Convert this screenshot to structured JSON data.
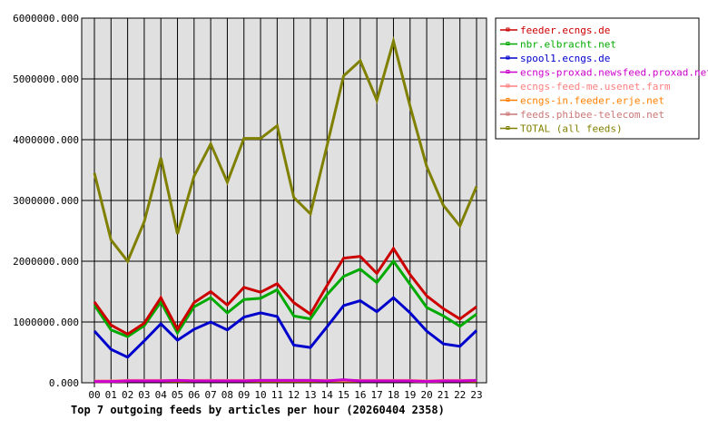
{
  "chart_data": {
    "type": "line",
    "title": "Top 7 outgoing feeds by articles per hour (20260404 2358)",
    "xlabel": "",
    "ylabel": "",
    "ylim": [
      0,
      6000000
    ],
    "yticks": [
      "0.000",
      "1000000.000",
      "2000000.000",
      "3000000.000",
      "4000000.000",
      "5000000.000",
      "6000000.000"
    ],
    "categories": [
      "00",
      "01",
      "02",
      "03",
      "04",
      "05",
      "06",
      "07",
      "08",
      "09",
      "10",
      "11",
      "12",
      "13",
      "14",
      "15",
      "16",
      "17",
      "18",
      "19",
      "20",
      "21",
      "22",
      "23"
    ],
    "grid": true,
    "legend": "right",
    "series": [
      {
        "name": "feeder.ecngs.de",
        "color": "#cc0000",
        "values": [
          1330000,
          950000,
          800000,
          980000,
          1400000,
          880000,
          1320000,
          1500000,
          1280000,
          1570000,
          1490000,
          1630000,
          1320000,
          1130000,
          1600000,
          2050000,
          2080000,
          1800000,
          2210000,
          1780000,
          1430000,
          1220000,
          1050000,
          1250000
        ]
      },
      {
        "name": "nbr.elbracht.net",
        "color": "#00aa00",
        "values": [
          1280000,
          870000,
          760000,
          940000,
          1330000,
          820000,
          1250000,
          1400000,
          1150000,
          1370000,
          1390000,
          1530000,
          1100000,
          1050000,
          1450000,
          1750000,
          1870000,
          1650000,
          2000000,
          1620000,
          1240000,
          1100000,
          930000,
          1130000
        ]
      },
      {
        "name": "spool1.ecngs.de",
        "color": "#0000cc",
        "values": [
          850000,
          550000,
          420000,
          690000,
          970000,
          700000,
          880000,
          1000000,
          870000,
          1080000,
          1150000,
          1090000,
          620000,
          580000,
          920000,
          1270000,
          1350000,
          1170000,
          1400000,
          1150000,
          850000,
          640000,
          600000,
          860000
        ]
      },
      {
        "name": "ecngs-proxad.newsfeed.proxad.net",
        "color": "#cc00cc",
        "values": [
          20000,
          20000,
          30000,
          30000,
          30000,
          40000,
          30000,
          30000,
          30000,
          30000,
          40000,
          40000,
          40000,
          40000,
          30000,
          50000,
          30000,
          30000,
          30000,
          30000,
          20000,
          30000,
          30000,
          40000
        ]
      },
      {
        "name": "ecngs-feed-me.usenet.farm",
        "color": "#ff8080",
        "values": [
          30000,
          30000,
          40000,
          40000,
          40000,
          40000,
          40000,
          40000,
          40000,
          40000,
          40000,
          40000,
          40000,
          40000,
          40000,
          40000,
          40000,
          40000,
          40000,
          40000,
          30000,
          40000,
          40000,
          40000
        ]
      },
      {
        "name": "ecngs-in.feeder.erje.net",
        "color": "#ff8000",
        "values": [
          20000,
          20000,
          30000,
          30000,
          30000,
          30000,
          30000,
          30000,
          30000,
          30000,
          30000,
          30000,
          30000,
          30000,
          30000,
          30000,
          30000,
          30000,
          30000,
          30000,
          20000,
          30000,
          30000,
          30000
        ]
      },
      {
        "name": "feeds.phibee-telecom.net",
        "color": "#cc7777",
        "values": [
          20000,
          20000,
          30000,
          30000,
          30000,
          30000,
          30000,
          30000,
          30000,
          30000,
          30000,
          30000,
          30000,
          30000,
          30000,
          30000,
          30000,
          30000,
          30000,
          30000,
          20000,
          30000,
          30000,
          30000
        ]
      },
      {
        "name": "TOTAL (all feeds)",
        "color": "#808000",
        "values": [
          3450000,
          2350000,
          2000000,
          2650000,
          3700000,
          2450000,
          3400000,
          3930000,
          3300000,
          4020000,
          4020000,
          4230000,
          3050000,
          2780000,
          3900000,
          5050000,
          5300000,
          4650000,
          5620000,
          4550000,
          3560000,
          2920000,
          2580000,
          3230000
        ]
      }
    ]
  }
}
